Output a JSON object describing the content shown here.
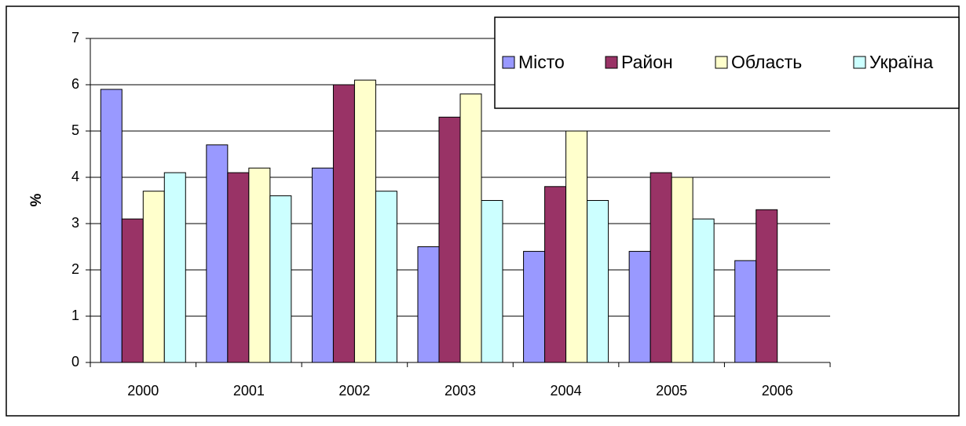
{
  "chart_data": {
    "type": "bar",
    "categories": [
      "2000",
      "2001",
      "2002",
      "2003",
      "2004",
      "2005",
      "2006"
    ],
    "series": [
      {
        "name": "Місто",
        "color": "#9999ff",
        "values": [
          5.9,
          4.7,
          4.2,
          2.5,
          2.4,
          2.4,
          2.2
        ]
      },
      {
        "name": "Район",
        "color": "#993366",
        "values": [
          3.1,
          4.1,
          6.0,
          5.3,
          3.8,
          4.1,
          3.3
        ]
      },
      {
        "name": "Область",
        "color": "#ffffcc",
        "values": [
          3.7,
          4.2,
          6.1,
          5.8,
          5.0,
          4.0,
          null
        ]
      },
      {
        "name": "Україна",
        "color": "#ccffff",
        "values": [
          4.1,
          3.6,
          3.7,
          3.5,
          3.5,
          3.1,
          null
        ]
      }
    ],
    "y_label": "%",
    "ylim": [
      0,
      7
    ],
    "yticks": [
      0,
      1,
      2,
      3,
      4,
      5,
      6,
      7
    ],
    "grid": true,
    "legend": "top-right"
  }
}
